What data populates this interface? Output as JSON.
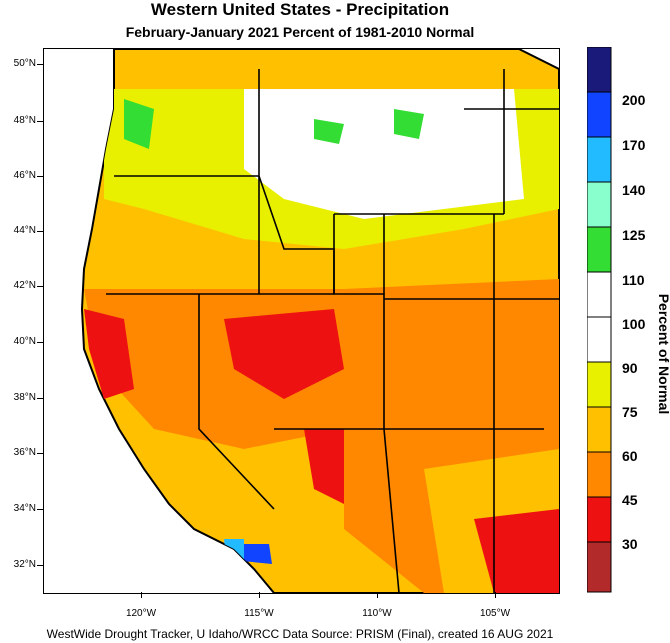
{
  "title": "Western United States - Precipitation",
  "subtitle": "February-January 2021  Percent of 1981-2010 Normal",
  "footer": "WestWide Drought Tracker, U Idaho/WRCC Data Source: PRISM (Final), created 16 AUG 2021",
  "legend": {
    "title": "Percent of Normal",
    "bins": [
      {
        "label": "",
        "color": "#b22a2a"
      },
      {
        "label": "30",
        "color": "#ee1111"
      },
      {
        "label": "45",
        "color": "#ff8800"
      },
      {
        "label": "60",
        "color": "#ffc000"
      },
      {
        "label": "75",
        "color": "#e8f000"
      },
      {
        "label": "90",
        "color": "#ffffff"
      },
      {
        "label": "100",
        "color": "#ffffff"
      },
      {
        "label": "110",
        "color": "#33dd33"
      },
      {
        "label": "125",
        "color": "#88ffcc"
      },
      {
        "label": "140",
        "color": "#22bbff"
      },
      {
        "label": "170",
        "color": "#1144ff"
      },
      {
        "label": "200",
        "color": "#1a1a7a"
      }
    ]
  },
  "lat_labels": [
    "50°N",
    "48°N",
    "46°N",
    "44°N",
    "42°N",
    "40°N",
    "38°N",
    "36°N",
    "34°N",
    "32°N"
  ],
  "lon_labels": [
    "120°W",
    "115°W",
    "110°W",
    "105°W"
  ],
  "colors": {
    "below": "#ff8800",
    "severe": "#ee1111",
    "moderate": "#ffc000",
    "near": "#e8f000",
    "normal": "#ffffff",
    "above": "#33dd33",
    "much_above": "#1144ff",
    "border": "#000000"
  }
}
